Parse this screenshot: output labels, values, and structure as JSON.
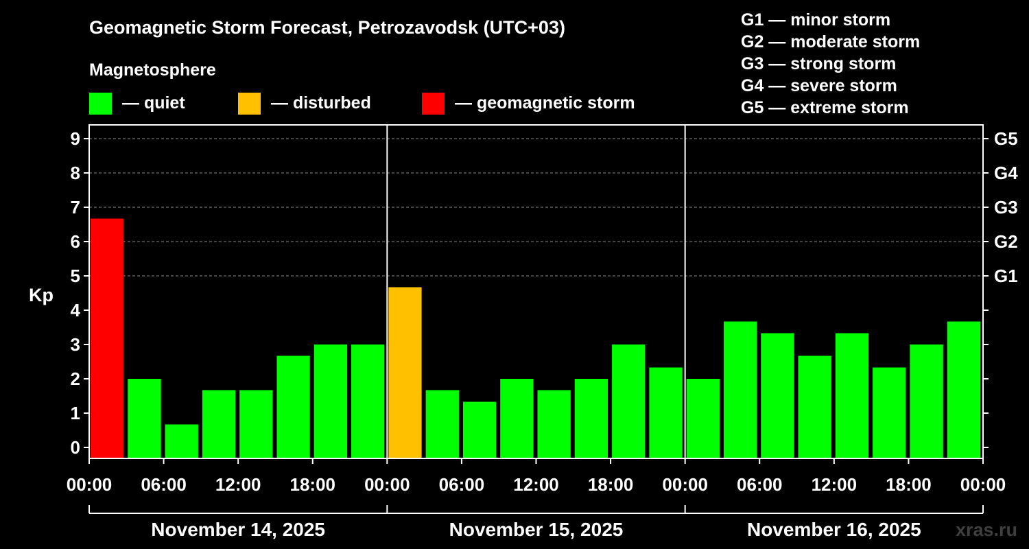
{
  "chart_data": {
    "type": "bar",
    "title": "Geomagnetic Storm Forecast, Petrozavodsk (UTC+03)",
    "ylabel": "Kp",
    "ylim": [
      0,
      9
    ],
    "yticks": [
      "0",
      "1",
      "2",
      "3",
      "4",
      "5",
      "6",
      "7",
      "8",
      "9"
    ],
    "g_ticks": [
      {
        "label": "G1",
        "kp": 5
      },
      {
        "label": "G2",
        "kp": 6
      },
      {
        "label": "G3",
        "kp": 7
      },
      {
        "label": "G4",
        "kp": 8
      },
      {
        "label": "G5",
        "kp": 9
      }
    ],
    "xticks": [
      "00:00",
      "06:00",
      "12:00",
      "18:00",
      "00:00",
      "06:00",
      "12:00",
      "18:00",
      "00:00",
      "06:00",
      "12:00",
      "18:00",
      "00:00"
    ],
    "days": [
      "November 14, 2025",
      "November 15, 2025",
      "November 16, 2025"
    ],
    "legend": {
      "heading": "Magnetosphere",
      "items": [
        {
          "label": "— quiet",
          "color": "#00ff00"
        },
        {
          "label": "— disturbed",
          "color": "#ffc000"
        },
        {
          "label": "— geomagnetic storm",
          "color": "#ff0000"
        }
      ]
    },
    "storm_scale": [
      "G1 — minor storm",
      "G2 — moderate storm",
      "G3 — strong storm",
      "G4 — severe storm",
      "G5 — extreme storm"
    ],
    "values": [
      6.67,
      2.0,
      0.67,
      1.67,
      1.67,
      2.67,
      3.0,
      3.0,
      4.67,
      1.67,
      1.33,
      2.0,
      1.67,
      2.0,
      3.0,
      2.33,
      2.0,
      3.67,
      3.33,
      2.67,
      3.33,
      2.33,
      3.0,
      3.67
    ],
    "grid": true
  },
  "watermark": "xras.ru"
}
